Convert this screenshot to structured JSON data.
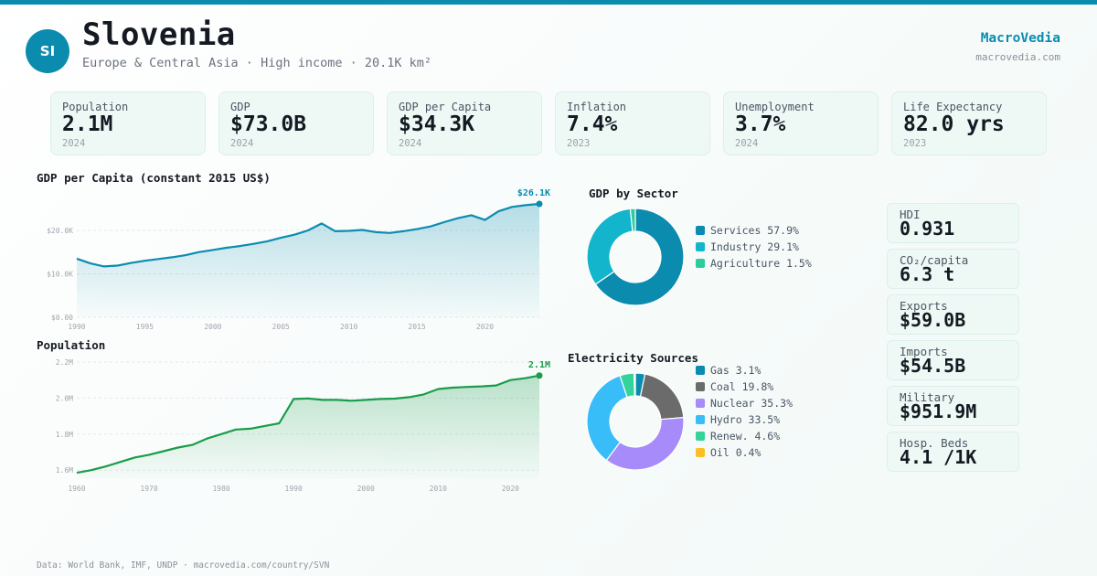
{
  "header": {
    "avatar": "SI",
    "title": "Slovenia",
    "subtitle": "Europe & Central Asia · High income · 20.1K km²",
    "brand": "MacroVedia",
    "brand_url": "macrovedia.com"
  },
  "kpis": [
    {
      "label": "Population",
      "value": "2.1M",
      "year": "2024"
    },
    {
      "label": "GDP",
      "value": "$73.0B",
      "year": "2024"
    },
    {
      "label": "GDP per Capita",
      "value": "$34.3K",
      "year": "2024"
    },
    {
      "label": "Inflation",
      "value": "7.4%",
      "year": "2023"
    },
    {
      "label": "Unemployment",
      "value": "3.7%",
      "year": "2024"
    },
    {
      "label": "Life Expectancy",
      "value": "82.0 yrs",
      "year": "2023"
    }
  ],
  "side": [
    {
      "label": "HDI",
      "value": "0.931"
    },
    {
      "label": "CO₂/capita",
      "value": "6.3 t"
    },
    {
      "label": "Exports",
      "value": "$59.0B"
    },
    {
      "label": "Imports",
      "value": "$54.5B"
    },
    {
      "label": "Military",
      "value": "$951.9M"
    },
    {
      "label": "Hosp. Beds",
      "value": "4.1 /1K"
    }
  ],
  "footer": "Data: World Bank, IMF, UNDP · macrovedia.com/country/SVN",
  "colors": {
    "accent": "#0b8caf",
    "population_line": "#1a9c4a"
  },
  "chart_data": [
    {
      "id": "gdp_per_capita",
      "type": "area",
      "title": "GDP per Capita (constant 2015 US$)",
      "end_label": "$26.1K",
      "xlim": [
        1990,
        2024
      ],
      "ylim": [
        0,
        26100
      ],
      "x_ticks": [
        1990,
        1995,
        2000,
        2005,
        2010,
        2015,
        2020
      ],
      "y_ticks": [
        0,
        10000,
        20000
      ],
      "y_tick_labels": [
        "$0.00",
        "$10.0K",
        "$20.0K"
      ],
      "x": [
        1990,
        1991,
        1992,
        1993,
        1994,
        1995,
        1996,
        1997,
        1998,
        1999,
        2000,
        2001,
        2002,
        2003,
        2004,
        2005,
        2006,
        2007,
        2008,
        2009,
        2010,
        2011,
        2012,
        2013,
        2014,
        2015,
        2016,
        2017,
        2018,
        2019,
        2020,
        2021,
        2022,
        2023,
        2024
      ],
      "values": [
        13500,
        12400,
        11700,
        11900,
        12500,
        13000,
        13400,
        13800,
        14300,
        15000,
        15500,
        16000,
        16400,
        16900,
        17500,
        18300,
        19000,
        20000,
        21600,
        19800,
        19900,
        20100,
        19600,
        19400,
        19800,
        20300,
        20900,
        21900,
        22800,
        23500,
        22400,
        24400,
        25400,
        25800,
        26100
      ]
    },
    {
      "id": "population",
      "type": "area",
      "title": "Population",
      "end_label": "2.1M",
      "xlim": [
        1960,
        2024
      ],
      "ylim": [
        1.55,
        2.2
      ],
      "x_ticks": [
        1960,
        1970,
        1980,
        1990,
        2000,
        2010,
        2020
      ],
      "y_ticks": [
        1.6,
        1.8,
        2.0,
        2.2
      ],
      "y_tick_labels": [
        "1.6M",
        "1.8M",
        "2.0M",
        "2.2M"
      ],
      "x": [
        1960,
        1962,
        1964,
        1966,
        1968,
        1970,
        1972,
        1974,
        1976,
        1978,
        1980,
        1982,
        1984,
        1986,
        1988,
        1990,
        1992,
        1994,
        1996,
        1998,
        2000,
        2002,
        2004,
        2006,
        2008,
        2010,
        2012,
        2014,
        2016,
        2018,
        2020,
        2022,
        2024
      ],
      "values": [
        1.585,
        1.6,
        1.62,
        1.645,
        1.67,
        1.685,
        1.705,
        1.725,
        1.74,
        1.775,
        1.8,
        1.825,
        1.83,
        1.845,
        1.86,
        1.995,
        1.998,
        1.99,
        1.99,
        1.985,
        1.99,
        1.995,
        1.997,
        2.005,
        2.02,
        2.05,
        2.058,
        2.062,
        2.065,
        2.07,
        2.1,
        2.11,
        2.125
      ]
    },
    {
      "id": "gdp_by_sector",
      "type": "pie",
      "title": "GDP by Sector",
      "slices": [
        {
          "label": "Services 57.9%",
          "value": 57.9,
          "color": "#0b8caf"
        },
        {
          "label": "Industry 29.1%",
          "value": 29.1,
          "color": "#12b5cc"
        },
        {
          "label": "Agriculture 1.5%",
          "value": 1.5,
          "color": "#2ecc9a"
        }
      ]
    },
    {
      "id": "electricity_sources",
      "type": "pie",
      "title": "Electricity Sources",
      "slices": [
        {
          "label": "Gas 3.1%",
          "value": 3.1,
          "color": "#0b8caf"
        },
        {
          "label": "Coal 19.8%",
          "value": 19.8,
          "color": "#6b6b6b"
        },
        {
          "label": "Nuclear 35.3%",
          "value": 35.3,
          "color": "#a78bfa"
        },
        {
          "label": "Hydro 33.5%",
          "value": 33.5,
          "color": "#38bdf8"
        },
        {
          "label": "Renew. 4.6%",
          "value": 4.6,
          "color": "#34d399"
        },
        {
          "label": "Oil 0.4%",
          "value": 0.4,
          "color": "#fbbf24"
        }
      ]
    }
  ]
}
